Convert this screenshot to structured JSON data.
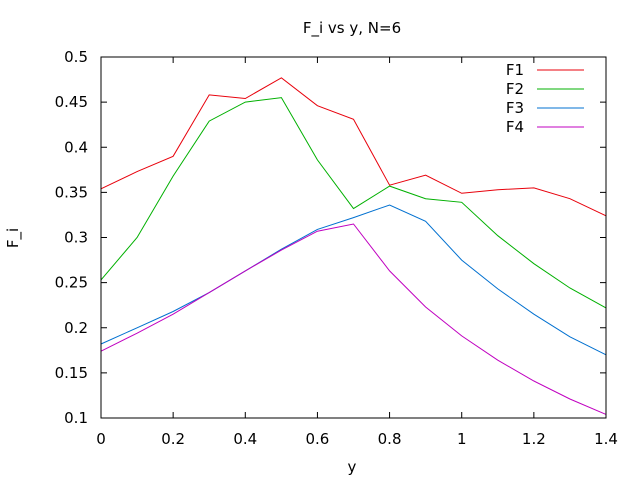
{
  "chart_data": {
    "type": "line",
    "title": "F_i vs y, N=6",
    "xlabel": "y",
    "ylabel": "F_i",
    "xlim": [
      0,
      1.4
    ],
    "ylim": [
      0.1,
      0.5
    ],
    "grid": false,
    "legend_position": "top-right",
    "x_ticks": [
      "0",
      "0.2",
      "0.4",
      "0.6",
      "0.8",
      "1",
      "1.2",
      "1.4"
    ],
    "y_ticks": [
      "0.1",
      "0.15",
      "0.2",
      "0.25",
      "0.3",
      "0.35",
      "0.4",
      "0.45",
      "0.5"
    ],
    "x": [
      0,
      0.1,
      0.2,
      0.3,
      0.4,
      0.5,
      0.6,
      0.7,
      0.8,
      0.9,
      1.0,
      1.1,
      1.2,
      1.3,
      1.4
    ],
    "series": [
      {
        "name": "F1",
        "color": "#e8000b",
        "values": [
          0.354,
          0.373,
          0.39,
          0.458,
          0.454,
          0.477,
          0.446,
          0.431,
          0.358,
          0.369,
          0.349,
          0.353,
          0.355,
          0.343,
          0.324
        ]
      },
      {
        "name": "F2",
        "color": "#00b000",
        "values": [
          0.253,
          0.3,
          0.368,
          0.429,
          0.45,
          0.455,
          0.386,
          0.332,
          0.357,
          0.343,
          0.339,
          0.302,
          0.271,
          0.244,
          0.222
        ]
      },
      {
        "name": "F3",
        "color": "#0070d0",
        "values": [
          0.182,
          0.2,
          0.218,
          0.239,
          0.263,
          0.287,
          0.309,
          0.322,
          0.336,
          0.318,
          0.275,
          0.243,
          0.215,
          0.19,
          0.17
        ]
      },
      {
        "name": "F4",
        "color": "#c000c0",
        "values": [
          0.174,
          0.194,
          0.215,
          0.239,
          0.263,
          0.286,
          0.307,
          0.315,
          0.263,
          0.223,
          0.191,
          0.164,
          0.141,
          0.121,
          0.104
        ]
      }
    ]
  }
}
